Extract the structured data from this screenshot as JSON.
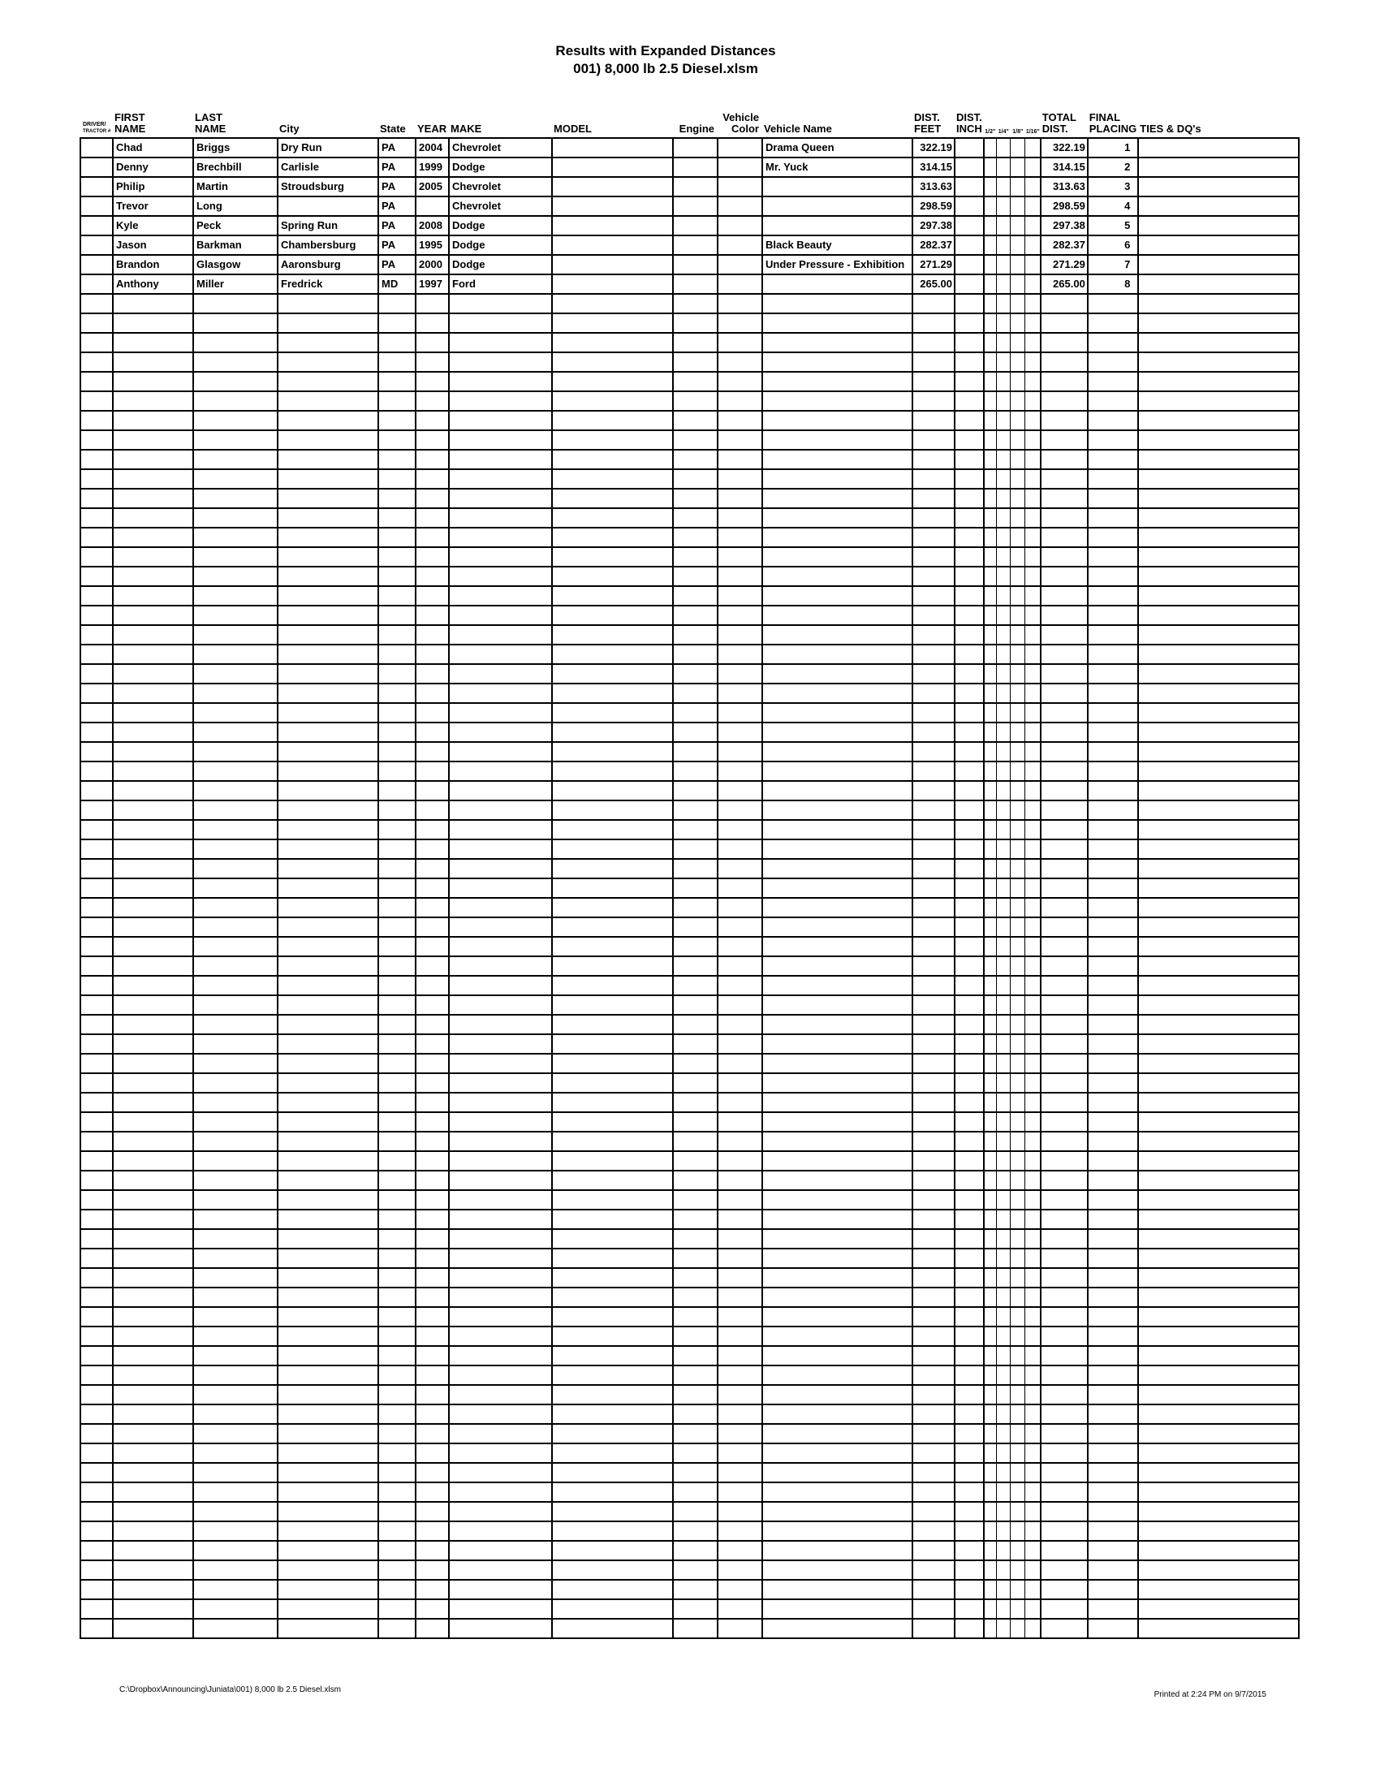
{
  "title": {
    "line1": "Results with Expanded Distances",
    "line2": "001) 8,000 lb 2.5 Diesel.xlsm"
  },
  "table": {
    "columns": [
      {
        "key": "tractor",
        "label": [
          "DRIVER/",
          "TRACTOR #"
        ]
      },
      {
        "key": "first",
        "label": [
          "FIRST",
          "NAME"
        ]
      },
      {
        "key": "last",
        "label": [
          "LAST",
          "NAME"
        ]
      },
      {
        "key": "city",
        "label": [
          "City"
        ]
      },
      {
        "key": "state",
        "label": [
          "State"
        ]
      },
      {
        "key": "year",
        "label": [
          "YEAR"
        ]
      },
      {
        "key": "make",
        "label": [
          "MAKE"
        ]
      },
      {
        "key": "model",
        "label": [
          "MODEL"
        ]
      },
      {
        "key": "engine",
        "label": [
          "Engine"
        ]
      },
      {
        "key": "vcolor",
        "label": [
          "Vehicle",
          "Color"
        ]
      },
      {
        "key": "vname",
        "label": [
          "Vehicle Name"
        ]
      },
      {
        "key": "feet",
        "label": [
          "DIST.",
          "FEET"
        ]
      },
      {
        "key": "inch",
        "label": [
          "DIST.",
          "INCH"
        ]
      },
      {
        "key": "half",
        "label": [
          "1/2\""
        ]
      },
      {
        "key": "quarter",
        "label": [
          "1/4\""
        ]
      },
      {
        "key": "eighth",
        "label": [
          "1/8\""
        ]
      },
      {
        "key": "sixteenth",
        "label": [
          "1/16\""
        ]
      },
      {
        "key": "total",
        "label": [
          "TOTAL",
          "DIST."
        ]
      },
      {
        "key": "placing",
        "label": [
          "FINAL",
          "PLACING"
        ]
      },
      {
        "key": "ties",
        "label": [
          "TIES & DQ's"
        ]
      }
    ],
    "rows": [
      {
        "tractor": "",
        "first": "Chad",
        "last": "Briggs",
        "city": "Dry Run",
        "state": "PA",
        "year": "2004",
        "make": "Chevrolet",
        "model": "",
        "engine": "",
        "vcolor": "",
        "vname": "Drama Queen",
        "feet": "322.19",
        "inch": "",
        "half": "",
        "quarter": "",
        "eighth": "",
        "sixteenth": "",
        "total": "322.19",
        "placing": "1",
        "ties": ""
      },
      {
        "tractor": "",
        "first": "Denny",
        "last": "Brechbill",
        "city": "Carlisle",
        "state": "PA",
        "year": "1999",
        "make": "Dodge",
        "model": "",
        "engine": "",
        "vcolor": "",
        "vname": "Mr. Yuck",
        "feet": "314.15",
        "inch": "",
        "half": "",
        "quarter": "",
        "eighth": "",
        "sixteenth": "",
        "total": "314.15",
        "placing": "2",
        "ties": ""
      },
      {
        "tractor": "",
        "first": "Philip",
        "last": "Martin",
        "city": "Stroudsburg",
        "state": "PA",
        "year": "2005",
        "make": "Chevrolet",
        "model": "",
        "engine": "",
        "vcolor": "",
        "vname": "",
        "feet": "313.63",
        "inch": "",
        "half": "",
        "quarter": "",
        "eighth": "",
        "sixteenth": "",
        "total": "313.63",
        "placing": "3",
        "ties": ""
      },
      {
        "tractor": "",
        "first": "Trevor",
        "last": "Long",
        "city": "",
        "state": "PA",
        "year": "",
        "make": "Chevrolet",
        "model": "",
        "engine": "",
        "vcolor": "",
        "vname": "",
        "feet": "298.59",
        "inch": "",
        "half": "",
        "quarter": "",
        "eighth": "",
        "sixteenth": "",
        "total": "298.59",
        "placing": "4",
        "ties": ""
      },
      {
        "tractor": "",
        "first": "Kyle",
        "last": "Peck",
        "city": "Spring Run",
        "state": "PA",
        "year": "2008",
        "make": "Dodge",
        "model": "",
        "engine": "",
        "vcolor": "",
        "vname": "",
        "feet": "297.38",
        "inch": "",
        "half": "",
        "quarter": "",
        "eighth": "",
        "sixteenth": "",
        "total": "297.38",
        "placing": "5",
        "ties": ""
      },
      {
        "tractor": "",
        "first": "Jason",
        "last": "Barkman",
        "city": "Chambersburg",
        "state": "PA",
        "year": "1995",
        "make": "Dodge",
        "model": "",
        "engine": "",
        "vcolor": "",
        "vname": "Black Beauty",
        "feet": "282.37",
        "inch": "",
        "half": "",
        "quarter": "",
        "eighth": "",
        "sixteenth": "",
        "total": "282.37",
        "placing": "6",
        "ties": ""
      },
      {
        "tractor": "",
        "first": "Brandon",
        "last": "Glasgow",
        "city": "Aaronsburg",
        "state": "PA",
        "year": "2000",
        "make": "Dodge",
        "model": "",
        "engine": "",
        "vcolor": "",
        "vname": "Under Pressure - Exhibition",
        "feet": "271.29",
        "inch": "",
        "half": "",
        "quarter": "",
        "eighth": "",
        "sixteenth": "",
        "total": "271.29",
        "placing": "7",
        "ties": ""
      },
      {
        "tractor": "",
        "first": "Anthony",
        "last": "Miller",
        "city": "Fredrick",
        "state": "MD",
        "year": "1997",
        "make": "Ford",
        "model": "",
        "engine": "",
        "vcolor": "",
        "vname": "",
        "feet": "265.00",
        "inch": "",
        "half": "",
        "quarter": "",
        "eighth": "",
        "sixteenth": "",
        "total": "265.00",
        "placing": "8",
        "ties": ""
      }
    ],
    "empty_row_count": 69
  },
  "footer": {
    "left": "C:\\Dropbox\\Announcing\\Juniata\\001) 8,000 lb 2.5 Diesel.xlsm",
    "right": "Printed at 2:24 PM on 9/7/2015"
  }
}
